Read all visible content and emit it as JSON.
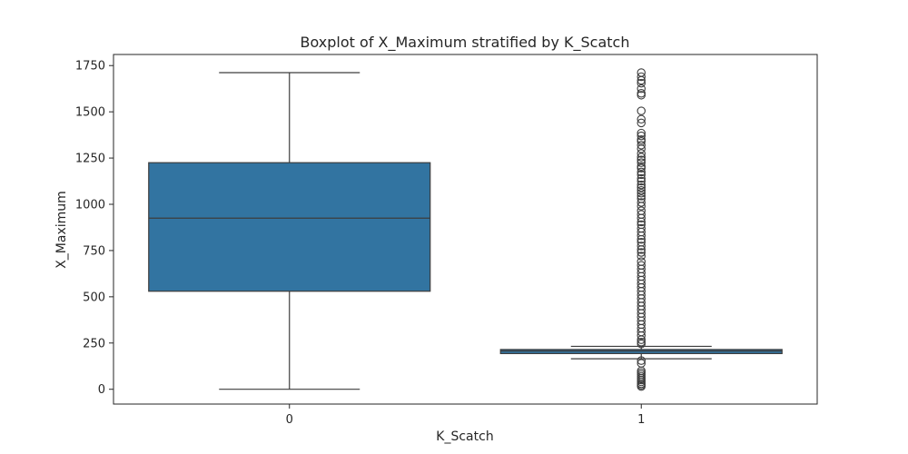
{
  "chart_data": {
    "type": "boxplot",
    "title": "Boxplot of X_Maximum stratified by K_Scatch",
    "xlabel": "K_Scatch",
    "ylabel": "X_Maximum",
    "categories": [
      "0",
      "1"
    ],
    "ylim": [
      -80,
      1810
    ],
    "yticks": [
      0,
      250,
      500,
      750,
      1000,
      1250,
      1500,
      1750
    ],
    "grid": false,
    "box_color": "#3274a1",
    "line_color": "#3d3d3d",
    "boxes": [
      {
        "category": "0",
        "whisker_low": 0,
        "q1": 530,
        "median": 925,
        "q3": 1225,
        "whisker_high": 1712,
        "outliers": []
      },
      {
        "category": "1",
        "whisker_low": 165,
        "q1": 193,
        "median": 207,
        "q3": 215,
        "whisker_high": 232,
        "outliers": [
          1712,
          1690,
          1670,
          1655,
          1625,
          1600,
          1590,
          1505,
          1460,
          1440,
          1385,
          1370,
          1350,
          1340,
          1320,
          1300,
          1275,
          1255,
          1240,
          1225,
          1205,
          1195,
          1175,
          1160,
          1140,
          1125,
          1105,
          1090,
          1075,
          1060,
          1045,
          1030,
          1010,
          990,
          965,
          945,
          925,
          905,
          890,
          870,
          850,
          830,
          810,
          795,
          775,
          755,
          740,
          720,
          690,
          670,
          650,
          630,
          610,
          590,
          570,
          550,
          530,
          510,
          490,
          470,
          450,
          430,
          410,
          390,
          370,
          350,
          330,
          310,
          290,
          268,
          255,
          245,
          155,
          140,
          100,
          90,
          80,
          70,
          60,
          50,
          40,
          30,
          22,
          15
        ]
      }
    ]
  }
}
